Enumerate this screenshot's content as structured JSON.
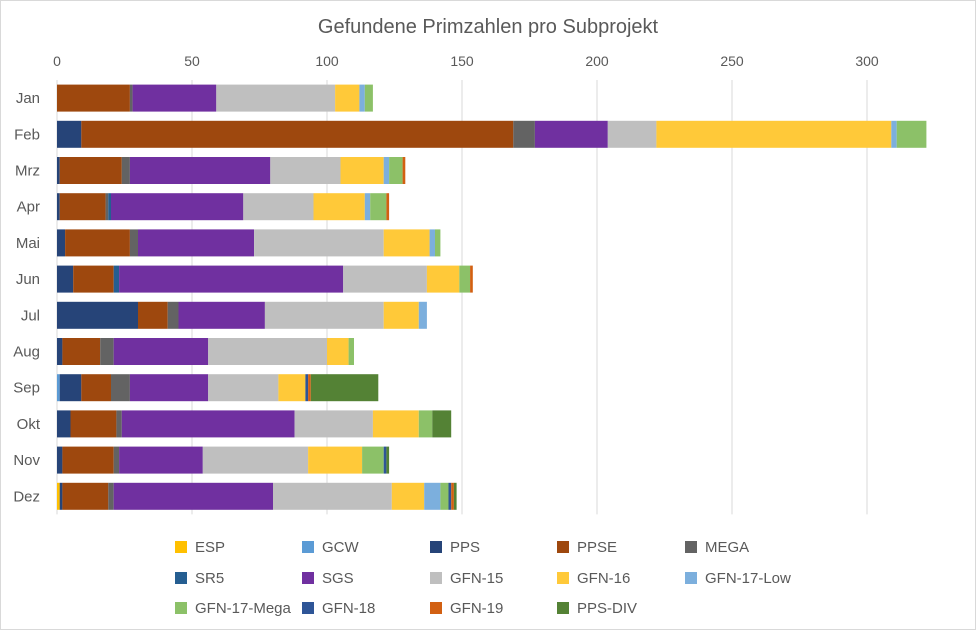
{
  "chart_data": {
    "type": "bar",
    "orientation": "horizontal",
    "stacked": true,
    "title": "Gefundene Primzahlen pro Subprojekt",
    "xlabel": "",
    "ylabel": "",
    "xlim": [
      0,
      320
    ],
    "xticks": [
      0,
      50,
      100,
      150,
      200,
      250,
      300
    ],
    "grid": "vertical",
    "legend_position": "bottom",
    "categories": [
      "Jan",
      "Feb",
      "Mrz",
      "Apr",
      "Mai",
      "Jun",
      "Jul",
      "Aug",
      "Sep",
      "Okt",
      "Nov",
      "Dez"
    ],
    "series": [
      {
        "name": "ESP",
        "color": "#FFC000",
        "values": [
          0,
          0,
          0,
          0,
          0,
          0,
          0,
          0,
          0,
          0,
          0,
          1
        ]
      },
      {
        "name": "GCW",
        "color": "#5B9BD5",
        "values": [
          0,
          0,
          0,
          0,
          0,
          0,
          0,
          0,
          1,
          0,
          0,
          0
        ]
      },
      {
        "name": "PPS",
        "color": "#264478",
        "values": [
          0,
          9,
          1,
          1,
          3,
          6,
          30,
          2,
          8,
          5,
          2,
          1
        ]
      },
      {
        "name": "PPSE",
        "color": "#9E480E",
        "values": [
          27,
          160,
          23,
          17,
          24,
          15,
          11,
          14,
          11,
          17,
          19,
          17
        ]
      },
      {
        "name": "MEGA",
        "color": "#636363",
        "values": [
          1,
          8,
          3,
          1,
          3,
          0,
          4,
          5,
          7,
          2,
          2,
          2
        ]
      },
      {
        "name": "SR5",
        "color": "#255E91",
        "values": [
          0,
          0,
          0,
          1,
          0,
          2,
          0,
          0,
          0,
          0,
          0,
          0
        ]
      },
      {
        "name": "SGS",
        "color": "#7030A0",
        "values": [
          31,
          27,
          52,
          49,
          43,
          83,
          32,
          35,
          29,
          64,
          31,
          59
        ]
      },
      {
        "name": "GFN-15",
        "color": "#BFBFBF",
        "values": [
          44,
          18,
          26,
          26,
          48,
          31,
          44,
          44,
          26,
          29,
          39,
          44
        ]
      },
      {
        "name": "GFN-16",
        "color": "#FFC939",
        "values": [
          9,
          87,
          16,
          19,
          17,
          12,
          13,
          8,
          10,
          17,
          20,
          12
        ]
      },
      {
        "name": "GFN-17-Low",
        "color": "#7CAFDD",
        "values": [
          2,
          2,
          2,
          2,
          2,
          0,
          3,
          0,
          0,
          0,
          0,
          6
        ]
      },
      {
        "name": "GFN-17-Mega",
        "color": "#8CC168",
        "values": [
          3,
          11,
          5,
          6,
          2,
          4,
          0,
          2,
          0,
          5,
          8,
          3
        ]
      },
      {
        "name": "GFN-18",
        "color": "#2E5597",
        "values": [
          0,
          0,
          0,
          0,
          0,
          0,
          0,
          0,
          1,
          0,
          1,
          1
        ]
      },
      {
        "name": "GFN-19",
        "color": "#D26012",
        "values": [
          0,
          0,
          1,
          1,
          0,
          1,
          0,
          0,
          1,
          0,
          0,
          1
        ]
      },
      {
        "name": "PPS-DIV",
        "color": "#548235",
        "values": [
          0,
          0,
          0,
          0,
          0,
          0,
          0,
          0,
          25,
          7,
          1,
          1
        ]
      }
    ]
  }
}
